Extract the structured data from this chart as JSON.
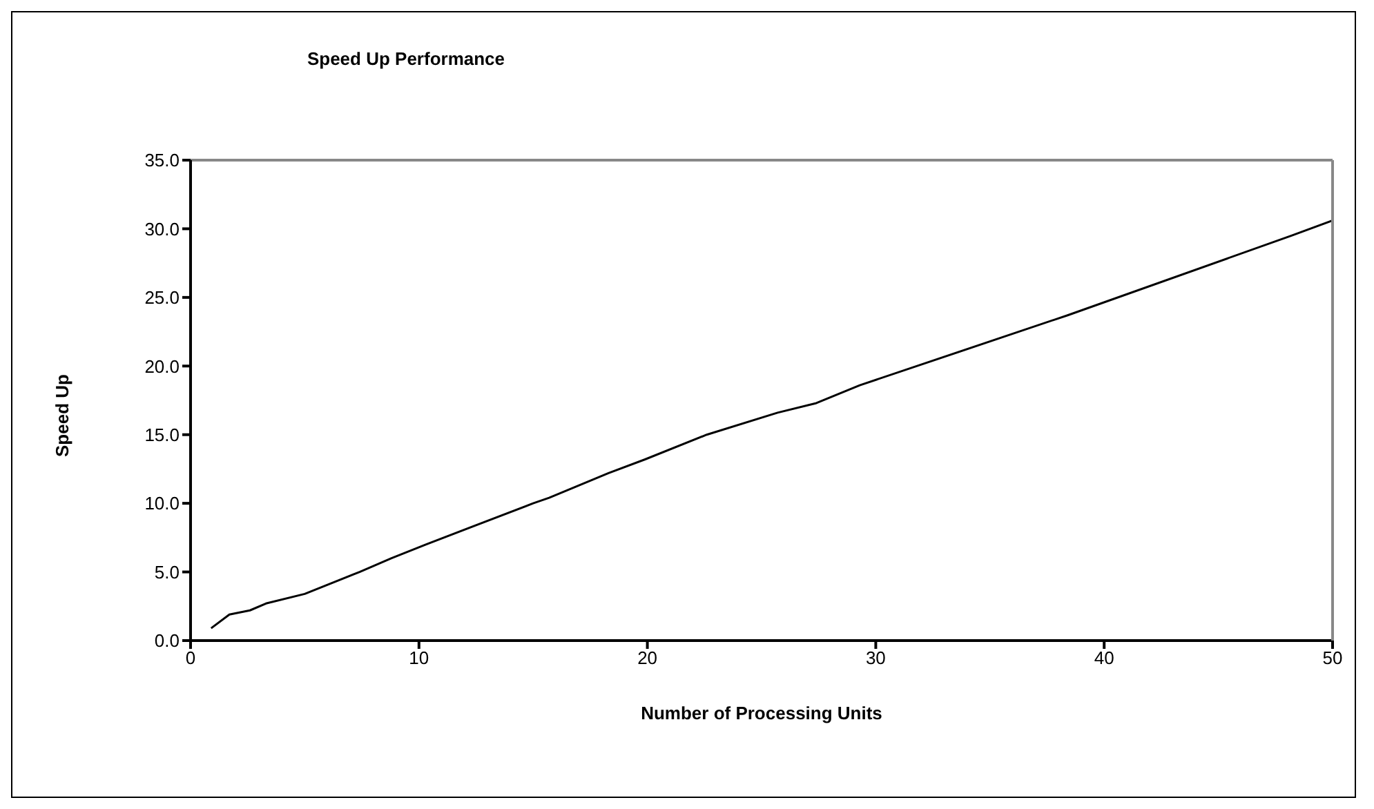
{
  "chart_data": {
    "type": "line",
    "title": "Speed Up Performance",
    "xlabel": "Number of Processing Units",
    "ylabel": "Speed Up",
    "x": [
      0.9,
      1.7,
      2.6,
      3.3,
      5.0,
      7.4,
      8.8,
      10.3,
      15.0,
      15.7,
      18.3,
      19.9,
      22.6,
      25.7,
      27.4,
      29.3,
      38.4,
      48.2,
      50
    ],
    "series": [
      {
        "color": "#000000",
        "values": [
          0.9,
          1.9,
          2.2,
          2.7,
          3.4,
          5.0,
          6.0,
          7.0,
          10.0,
          10.4,
          12.2,
          13.2,
          15.0,
          16.6,
          17.3,
          18.6,
          23.7,
          29.5,
          30.6
        ]
      }
    ],
    "xlim": [
      0,
      50
    ],
    "xticks": [
      0,
      10,
      20,
      30,
      40,
      50
    ],
    "ylim": [
      0,
      35
    ],
    "yticks": [
      {
        "value": 0,
        "label": "0.0"
      },
      {
        "value": 5,
        "label": "5.0"
      },
      {
        "value": 10,
        "label": "10.0"
      },
      {
        "value": 15,
        "label": "15.0"
      },
      {
        "value": 20,
        "label": "20.0"
      },
      {
        "value": 25,
        "label": "25.0"
      },
      {
        "value": 30,
        "label": "30.0"
      },
      {
        "value": 35,
        "label": "35.0"
      }
    ],
    "marker": "none",
    "line_style": "solid"
  }
}
